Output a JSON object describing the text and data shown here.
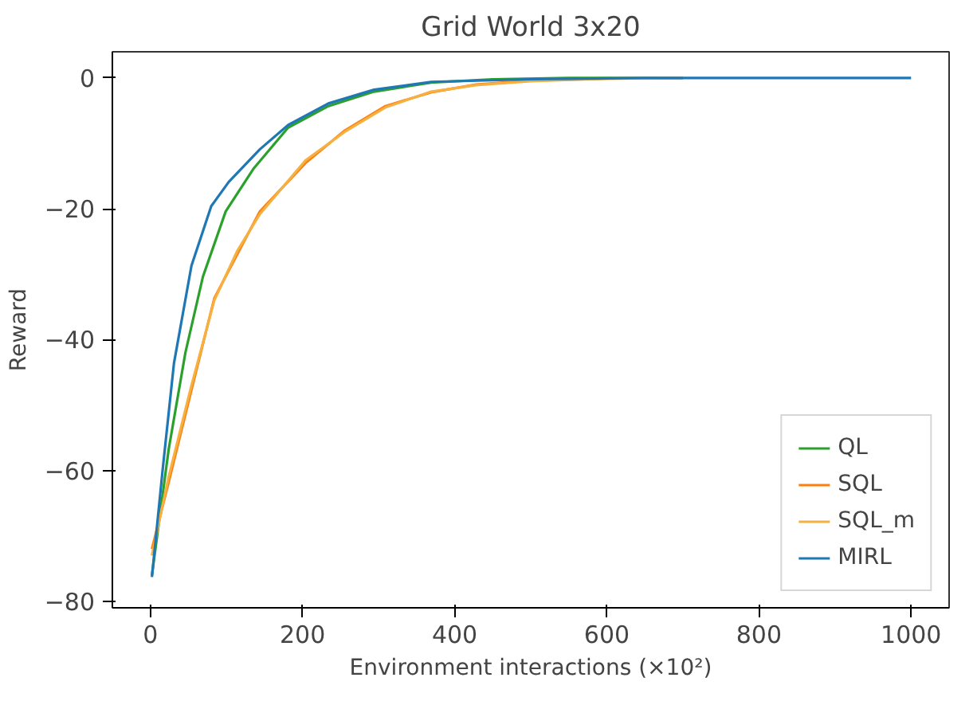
{
  "chart_data": {
    "type": "line",
    "title": "Grid World 3x20",
    "xlabel": "Environment interactions (×10²)",
    "ylabel": "Reward",
    "xlim": [
      -50,
      1050
    ],
    "ylim": [
      -81,
      4
    ],
    "xticks": [
      0,
      200,
      400,
      600,
      800,
      1000
    ],
    "yticks": [
      -80,
      -60,
      -40,
      -20,
      0
    ],
    "grid": false,
    "legend": "bottom right",
    "line_style": "solid",
    "series": [
      {
        "name": "QL",
        "color": "#2ca02c",
        "x": [
          2,
          24,
          46,
          69,
          99,
          136,
          181,
          234,
          294,
          369,
          450,
          550,
          700
        ],
        "values": [
          -76,
          -56.8,
          -42,
          -30.4,
          -20.4,
          -13.8,
          -7.6,
          -4.3,
          -2.1,
          -0.7,
          -0.2,
          0,
          0
        ]
      },
      {
        "name": "SQL",
        "color": "#ff7f0e",
        "x": [
          2,
          24,
          54,
          84,
          114,
          144,
          204,
          256,
          309,
          369,
          428,
          500,
          600,
          700
        ],
        "values": [
          -72,
          -61.8,
          -47.7,
          -33.7,
          -27,
          -20.4,
          -13,
          -8,
          -4.3,
          -2.2,
          -1,
          -0.4,
          -0.1,
          0
        ]
      },
      {
        "name": "SQL_m",
        "color": "#f5b041",
        "x": [
          2,
          24,
          54,
          84,
          114,
          144,
          204,
          256,
          309,
          369,
          428,
          500,
          600,
          700
        ],
        "values": [
          -73,
          -61,
          -47,
          -34,
          -26.5,
          -20.8,
          -12.6,
          -8.2,
          -4.5,
          -2.1,
          -1.1,
          -0.5,
          -0.1,
          0
        ]
      },
      {
        "name": "MIRL",
        "color": "#1f77b4",
        "x": [
          2,
          16,
          31,
          54,
          80,
          103,
          144,
          181,
          234,
          294,
          369,
          500,
          650,
          800,
          1000
        ],
        "values": [
          -76.3,
          -60,
          -43.6,
          -28.7,
          -19.6,
          -15.9,
          -10.9,
          -7.2,
          -3.9,
          -1.8,
          -0.6,
          -0.2,
          0,
          0,
          0
        ]
      }
    ]
  }
}
